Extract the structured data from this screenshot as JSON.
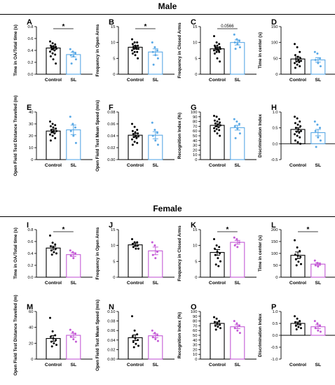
{
  "sections": [
    {
      "title": "Male"
    },
    {
      "title": "Female"
    }
  ],
  "colors": {
    "control": "#000000",
    "sl_male": "#5aa9e6",
    "sl_female": "#c45ad6"
  },
  "chart_data": [
    {
      "panel": "A",
      "type": "bar",
      "categories": [
        "Control",
        "SL"
      ],
      "ylabel": "Time in OA/Total time (s)",
      "ylim": [
        0,
        0.8
      ],
      "yticks": [
        "0.0",
        "0.2",
        "0.4",
        "0.6",
        "0.8"
      ],
      "yticks_num": [
        0,
        0.2,
        0.4,
        0.6,
        0.8
      ],
      "values": [
        0.44,
        0.33
      ],
      "errors": [
        0.03,
        0.04
      ],
      "points": [
        [
          0.55,
          0.52,
          0.5,
          0.48,
          0.47,
          0.46,
          0.45,
          0.44,
          0.43,
          0.42,
          0.4,
          0.38,
          0.35,
          0.33,
          0.3,
          0.25,
          0.18
        ],
        [
          0.42,
          0.38,
          0.35,
          0.32,
          0.3,
          0.25,
          0.18
        ]
      ],
      "annotation": "*"
    },
    {
      "panel": "B",
      "type": "bar",
      "categories": [
        "Control",
        "SL"
      ],
      "ylabel": "Frequency in Open Arms",
      "ylim": [
        0,
        15
      ],
      "yticks": [
        "0",
        "5",
        "10",
        "15"
      ],
      "yticks_num": [
        0,
        5,
        10,
        15
      ],
      "values": [
        8.5,
        7.0
      ],
      "errors": [
        0.5,
        1.0
      ],
      "points": [
        [
          11,
          10,
          10,
          9.5,
          9,
          9,
          8.5,
          8.5,
          8,
          8,
          8,
          7.5,
          7,
          7,
          6.5,
          6,
          5
        ],
        [
          10,
          8.5,
          7.5,
          7,
          6,
          5,
          3
        ]
      ],
      "annotation": "*"
    },
    {
      "panel": "C",
      "type": "bar",
      "categories": [
        "Control",
        "SL"
      ],
      "ylabel": "Frequency in Closed Arms",
      "ylim": [
        0,
        15
      ],
      "yticks": [
        "0",
        "5",
        "10",
        "15"
      ],
      "yticks_num": [
        0,
        5,
        10,
        15
      ],
      "values": [
        8.0,
        10.0
      ],
      "errors": [
        0.5,
        0.8
      ],
      "points": [
        [
          12,
          10,
          9.5,
          9,
          9,
          8.5,
          8.5,
          8,
          8,
          8,
          7.5,
          7.5,
          7,
          7,
          6.5,
          5,
          4
        ],
        [
          12.5,
          11,
          10.5,
          10,
          9.5,
          8.5,
          8
        ]
      ],
      "annotation": "0.0566"
    },
    {
      "panel": "D",
      "type": "bar",
      "categories": [
        "Control",
        "SL"
      ],
      "ylabel": "Time in center (s)",
      "ylim": [
        0,
        150
      ],
      "yticks": [
        "0",
        "50",
        "100",
        "150"
      ],
      "yticks_num": [
        0,
        50,
        100,
        150
      ],
      "values": [
        48,
        45
      ],
      "errors": [
        6,
        7
      ],
      "points": [
        [
          95,
          85,
          70,
          60,
          55,
          50,
          48,
          45,
          42,
          40,
          38,
          35,
          30,
          25,
          20
        ],
        [
          70,
          65,
          50,
          45,
          35,
          25
        ]
      ]
    },
    {
      "panel": "E",
      "type": "bar",
      "categories": [
        "Control",
        "SL"
      ],
      "ylabel": "Open Field Test Distance Travelled (m)",
      "ylim": [
        0,
        40
      ],
      "yticks": [
        "0",
        "10",
        "20",
        "30",
        "40"
      ],
      "yticks_num": [
        0,
        10,
        20,
        30,
        40
      ],
      "values": [
        24,
        25
      ],
      "errors": [
        1.5,
        4
      ],
      "points": [
        [
          32,
          30,
          29,
          28,
          27,
          26,
          25,
          24,
          24,
          23,
          22,
          21,
          20,
          18,
          16
        ],
        [
          36,
          30,
          27,
          24,
          20,
          14
        ]
      ]
    },
    {
      "panel": "F",
      "type": "bar",
      "categories": [
        "Control",
        "SL"
      ],
      "ylabel": "Open Field Test Mean Speed (m/s)",
      "ylim": [
        0,
        0.08
      ],
      "yticks": [
        "0.00",
        "0.02",
        "0.04",
        "0.06",
        "0.08"
      ],
      "yticks_num": [
        0,
        0.02,
        0.04,
        0.06,
        0.08
      ],
      "values": [
        0.041,
        0.041
      ],
      "errors": [
        0.003,
        0.006
      ],
      "points": [
        [
          0.06,
          0.055,
          0.05,
          0.048,
          0.046,
          0.044,
          0.042,
          0.04,
          0.039,
          0.038,
          0.036,
          0.034,
          0.03,
          0.028,
          0.025
        ],
        [
          0.062,
          0.05,
          0.045,
          0.04,
          0.032,
          0.025
        ]
      ]
    },
    {
      "panel": "G",
      "type": "bar",
      "categories": [
        "Control",
        "SL"
      ],
      "ylabel": "Recognition Index (%)",
      "ylim": [
        0,
        100
      ],
      "yticks": [
        "0",
        "10",
        "20",
        "30",
        "40",
        "50",
        "60",
        "70",
        "80",
        "90",
        "100"
      ],
      "yticks_num": [
        0,
        10,
        20,
        30,
        40,
        50,
        60,
        70,
        80,
        90,
        100
      ],
      "values": [
        72,
        67
      ],
      "errors": [
        3,
        5
      ],
      "points": [
        [
          92,
          90,
          85,
          82,
          80,
          78,
          76,
          74,
          72,
          70,
          68,
          66,
          64,
          62,
          60,
          55,
          50
        ],
        [
          85,
          80,
          75,
          70,
          65,
          55,
          45
        ]
      ]
    },
    {
      "panel": "H",
      "type": "bar",
      "categories": [
        "Control",
        "SL"
      ],
      "ylabel": "Discrimination Index",
      "ylim": [
        -0.5,
        1.0
      ],
      "yticks": [
        "-0.5",
        "0.0",
        "0.5",
        "1.0"
      ],
      "yticks_num": [
        -0.5,
        0,
        0.5,
        1.0
      ],
      "values": [
        0.45,
        0.35
      ],
      "errors": [
        0.06,
        0.1
      ],
      "points": [
        [
          0.85,
          0.8,
          0.7,
          0.65,
          0.6,
          0.55,
          0.5,
          0.45,
          0.4,
          0.38,
          0.35,
          0.3,
          0.25,
          0.2,
          0.1,
          0.05,
          0.0
        ],
        [
          0.7,
          0.6,
          0.5,
          0.4,
          0.2,
          0.1,
          -0.1
        ]
      ]
    },
    {
      "panel": "I",
      "type": "bar",
      "categories": [
        "Control",
        "SL"
      ],
      "ylabel": "Time in OA/Total time (s)",
      "ylim": [
        0,
        0.8
      ],
      "yticks": [
        "0.0",
        "0.2",
        "0.4",
        "0.6",
        "0.8"
      ],
      "yticks_num": [
        0,
        0.2,
        0.4,
        0.6,
        0.8
      ],
      "values": [
        0.49,
        0.38
      ],
      "errors": [
        0.03,
        0.03
      ],
      "points": [
        [
          0.7,
          0.58,
          0.55,
          0.52,
          0.5,
          0.48,
          0.45,
          0.42,
          0.4,
          0.38
        ],
        [
          0.45,
          0.42,
          0.4,
          0.36,
          0.32
        ]
      ],
      "annotation": "*"
    },
    {
      "panel": "J",
      "type": "bar",
      "categories": [
        "Control",
        "SL"
      ],
      "ylabel": "Frequency in Open Arms",
      "ylim": [
        0,
        15
      ],
      "yticks": [
        "0",
        "5",
        "10",
        "15"
      ],
      "yticks_num": [
        0,
        5,
        10,
        15
      ],
      "values": [
        10.2,
        8.3
      ],
      "errors": [
        0.5,
        1.2
      ],
      "points": [
        [
          12,
          11,
          11,
          10.5,
          10,
          10,
          9.5,
          9,
          9
        ],
        [
          11,
          10,
          8,
          7,
          6
        ]
      ]
    },
    {
      "panel": "K",
      "type": "bar",
      "categories": [
        "Control",
        "SL"
      ],
      "ylabel": "Frequency in Closed Arms",
      "ylim": [
        0,
        15
      ],
      "yticks": [
        "0",
        "5",
        "10",
        "15"
      ],
      "yticks_num": [
        0,
        5,
        10,
        15
      ],
      "values": [
        7.8,
        11.0
      ],
      "errors": [
        0.9,
        0.6
      ],
      "points": [
        [
          12,
          10,
          9.5,
          9,
          8,
          7.5,
          7,
          6,
          5,
          4,
          3.5
        ],
        [
          12.5,
          12,
          11,
          10,
          9.5
        ]
      ],
      "annotation": "*"
    },
    {
      "panel": "L",
      "type": "bar",
      "categories": [
        "Control",
        "SL"
      ],
      "ylabel": "Time in center (s)",
      "ylim": [
        0,
        200
      ],
      "yticks": [
        "0",
        "50",
        "100",
        "150",
        "200"
      ],
      "yticks_num": [
        0,
        50,
        100,
        150,
        200
      ],
      "values": [
        92,
        55
      ],
      "errors": [
        14,
        5
      ],
      "points": [
        [
          155,
          125,
          110,
          95,
          90,
          85,
          75,
          65,
          55,
          50
        ],
        [
          70,
          60,
          55,
          50,
          45
        ]
      ],
      "annotation": "*"
    },
    {
      "panel": "M",
      "type": "bar",
      "categories": [
        "Control",
        "SL"
      ],
      "ylabel": "Open Field Test Distance Travelled (m)",
      "ylim": [
        0,
        60
      ],
      "yticks": [
        "0",
        "20",
        "40",
        "60"
      ],
      "yticks_num": [
        0,
        20,
        40,
        60
      ],
      "values": [
        26,
        30
      ],
      "errors": [
        3.5,
        2.5
      ],
      "points": [
        [
          52,
          35,
          30,
          28,
          26,
          24,
          22,
          20,
          18,
          16
        ],
        [
          37,
          34,
          32,
          28,
          25,
          22
        ]
      ]
    },
    {
      "panel": "N",
      "type": "bar",
      "categories": [
        "Control",
        "SL"
      ],
      "ylabel": "Open Field Test Mean Speed (m/s)",
      "ylim": [
        0,
        0.1
      ],
      "yticks": [
        "0.00",
        "0.02",
        "0.04",
        "0.06",
        "0.08",
        "0.10"
      ],
      "yticks_num": [
        0,
        0.02,
        0.04,
        0.06,
        0.08,
        0.1
      ],
      "values": [
        0.045,
        0.049
      ],
      "errors": [
        0.006,
        0.004
      ],
      "points": [
        [
          0.09,
          0.06,
          0.052,
          0.048,
          0.044,
          0.04,
          0.036,
          0.032,
          0.028,
          0.025
        ],
        [
          0.06,
          0.055,
          0.05,
          0.046,
          0.042,
          0.038
        ]
      ]
    },
    {
      "panel": "O",
      "type": "bar",
      "categories": [
        "Control",
        "SL"
      ],
      "ylabel": "Recognition Index (%)",
      "ylim": [
        0,
        100
      ],
      "yticks": [
        "0",
        "10",
        "20",
        "30",
        "40",
        "50",
        "60",
        "70",
        "80",
        "90",
        "100"
      ],
      "yticks_num": [
        0,
        10,
        20,
        30,
        40,
        50,
        60,
        70,
        80,
        90,
        100
      ],
      "values": [
        75,
        68
      ],
      "errors": [
        3,
        4
      ],
      "points": [
        [
          88,
          85,
          80,
          78,
          75,
          72,
          70,
          68,
          65,
          62
        ],
        [
          80,
          75,
          70,
          65,
          60,
          55
        ]
      ]
    },
    {
      "panel": "P",
      "type": "bar",
      "categories": [
        "Control",
        "SL"
      ],
      "ylabel": "Discrimination Index",
      "ylim": [
        -1.0,
        1.0
      ],
      "yticks": [
        "-1.0",
        "-0.5",
        "0.0",
        "0.5",
        "1.0"
      ],
      "yticks_num": [
        -1.0,
        -0.5,
        0,
        0.5,
        1.0
      ],
      "values": [
        0.5,
        0.36
      ],
      "errors": [
        0.06,
        0.08
      ],
      "points": [
        [
          0.8,
          0.7,
          0.6,
          0.55,
          0.5,
          0.45,
          0.4,
          0.35,
          0.3,
          0.25
        ],
        [
          0.6,
          0.5,
          0.4,
          0.3,
          0.2,
          0.15
        ]
      ]
    }
  ]
}
